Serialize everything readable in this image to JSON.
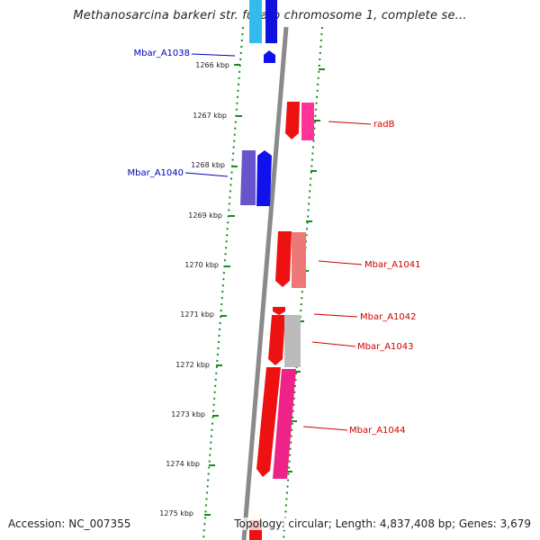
{
  "title": "Methanosarcina barkeri str. fusaro chromosome 1, complete se...",
  "accession": "Accession: NC_007355",
  "footer": "Topology: circular; Length: 4,837,408 bp; Genes: 3,679",
  "colors": {
    "backbone": "#808080",
    "tick": "#1a8a1a",
    "plus_label": "#cc0000",
    "minus_label": "#0000bb"
  },
  "ruler": [
    {
      "label": "1266 kbp"
    },
    {
      "label": "1267 kbp"
    },
    {
      "label": "1268 kbp"
    },
    {
      "label": "1269 kbp"
    },
    {
      "label": "1270 kbp"
    },
    {
      "label": "1271 kbp"
    },
    {
      "label": "1272 kbp"
    },
    {
      "label": "1273 kbp"
    },
    {
      "label": "1274 kbp"
    },
    {
      "label": "1275 kbp"
    }
  ],
  "gene_labels": [
    {
      "name": "Mbar_A1038",
      "strand": "minus"
    },
    {
      "name": "Mbar_A1040",
      "strand": "minus"
    },
    {
      "name": "radB",
      "strand": "plus"
    },
    {
      "name": "Mbar_A1041",
      "strand": "plus"
    },
    {
      "name": "Mbar_A1042",
      "strand": "plus"
    },
    {
      "name": "Mbar_A1043",
      "strand": "plus"
    },
    {
      "name": "Mbar_A1044",
      "strand": "plus"
    }
  ]
}
